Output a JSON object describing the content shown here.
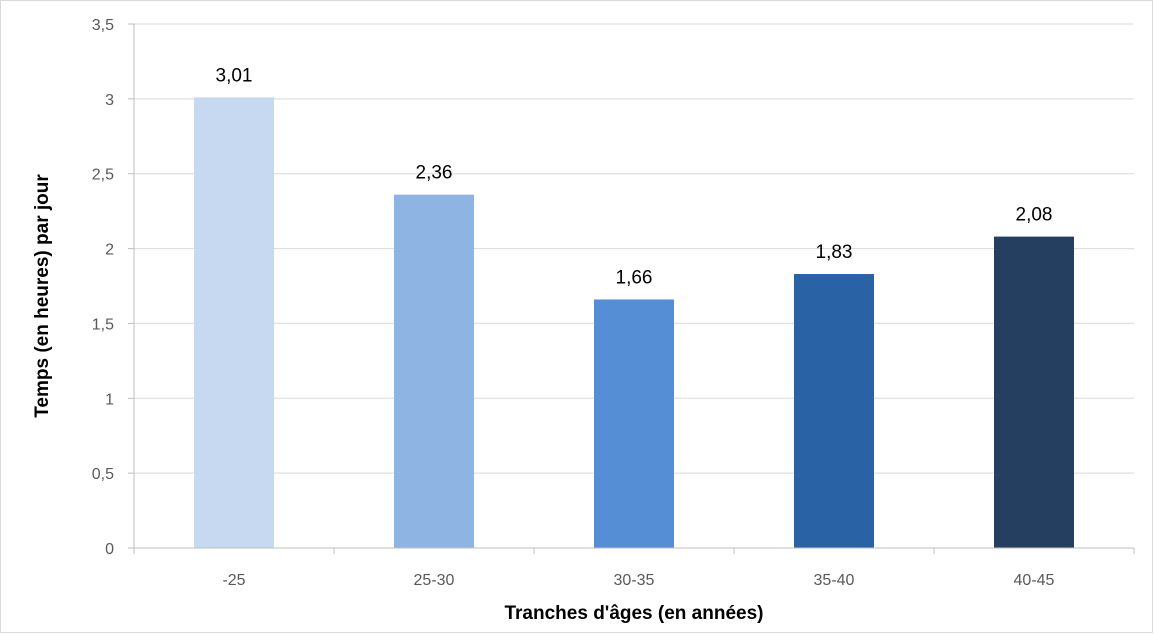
{
  "chart_data": {
    "type": "bar",
    "title": "",
    "xlabel": "Tranches d'âges (en années)",
    "ylabel": "Temps (en heures) par jour",
    "categories": [
      "-25",
      "25-30",
      "30-35",
      "35-40",
      "40-45"
    ],
    "values": [
      3.01,
      2.36,
      1.66,
      1.83,
      2.08
    ],
    "value_labels": [
      "3,01",
      "2,36",
      "1,66",
      "1,83",
      "2,08"
    ],
    "ylim": [
      0,
      3.5
    ],
    "yticks": [
      0,
      0.5,
      1,
      1.5,
      2,
      2.5,
      3,
      3.5
    ],
    "ytick_labels": [
      "0",
      "0,5",
      "1",
      "1,5",
      "2",
      "2,5",
      "3",
      "3,5"
    ],
    "grid": true,
    "legend": "none",
    "colors": [
      "#c6d9f1",
      "#8eb4e3",
      "#558ed5",
      "#2a62a6",
      "#253f60"
    ],
    "grid_color": "#d9d9d9",
    "axis_color": "#bfbfbf"
  }
}
